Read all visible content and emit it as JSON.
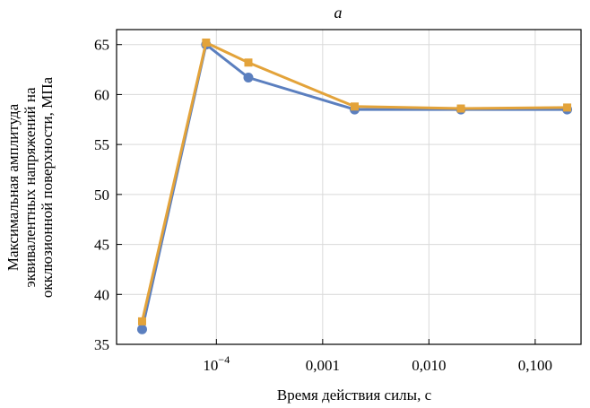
{
  "chart_data": {
    "type": "line",
    "panel_label": "а",
    "xlabel": "Время действия силы, с",
    "ylabel_lines": [
      "Максимальная амплитуда",
      "эквивалентных напряжений на",
      "окклюзионной поверхности, МПа"
    ],
    "x_scale": "log",
    "xlim": [
      1.15e-05,
      0.27
    ],
    "ylim": [
      35,
      66.5
    ],
    "x_ticks": [
      {
        "value": 0.0001,
        "base": "10",
        "exp": "−4"
      },
      {
        "value": 0.001,
        "label": "0,001"
      },
      {
        "value": 0.01,
        "label": "0,010"
      },
      {
        "value": 0.1,
        "label": "0,100"
      }
    ],
    "y_ticks": [
      35,
      40,
      45,
      50,
      55,
      60,
      65
    ],
    "grid": true,
    "series": [
      {
        "color": "#5b7fbf",
        "marker": "circle",
        "x": [
          2e-05,
          8e-05,
          0.0002,
          0.002,
          0.02,
          0.2
        ],
        "y": [
          36.5,
          65.0,
          61.7,
          58.5,
          58.5,
          58.5
        ]
      },
      {
        "color": "#e3a33a",
        "marker": "square",
        "x": [
          2e-05,
          8e-05,
          0.0002,
          0.002,
          0.02,
          0.2
        ],
        "y": [
          37.3,
          65.2,
          63.2,
          58.8,
          58.6,
          58.7
        ]
      }
    ]
  }
}
